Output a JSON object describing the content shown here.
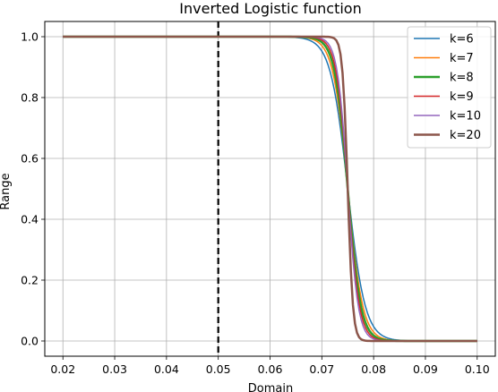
{
  "chart_data": {
    "type": "line",
    "title": "Inverted Logistic function",
    "xlabel": "Domain",
    "ylabel": "Range",
    "xlim": [
      0.0165,
      0.1035
    ],
    "ylim": [
      -0.05,
      1.05
    ],
    "xticks": [
      "0.02",
      "0.03",
      "0.04",
      "0.05",
      "0.06",
      "0.07",
      "0.08",
      "0.09",
      "0.10"
    ],
    "xtick_values": [
      0.02,
      0.03,
      0.04,
      0.05,
      0.06,
      0.07,
      0.08,
      0.09,
      0.1
    ],
    "yticks": [
      "0.0",
      "0.2",
      "0.4",
      "0.6",
      "0.8",
      "1.0"
    ],
    "ytick_values": [
      0.0,
      0.2,
      0.4,
      0.6,
      0.8,
      1.0
    ],
    "grid": true,
    "legend_position": "top-right",
    "vline": {
      "x": 0.05,
      "style": "dashed",
      "color": "#000000"
    },
    "function": {
      "form": "1 / (1 + exp(k*100*(x - 0.075)))",
      "x_start": 0.02,
      "x_end": 0.1,
      "midpoint": 0.075
    },
    "series": [
      {
        "name": "k=6",
        "k": 6,
        "color": "#1f77b4",
        "width": 1.5
      },
      {
        "name": "k=7",
        "k": 7,
        "color": "#ff7f0e",
        "width": 1.5
      },
      {
        "name": "k=8",
        "k": 8,
        "color": "#2ca02c",
        "width": 2.5
      },
      {
        "name": "k=9",
        "k": 9,
        "color": "#d62728",
        "width": 1.5
      },
      {
        "name": "k=10",
        "k": 10,
        "color": "#9467bd",
        "width": 1.5
      },
      {
        "name": "k=20",
        "k": 20,
        "color": "#8c564b",
        "width": 2.5
      }
    ]
  }
}
